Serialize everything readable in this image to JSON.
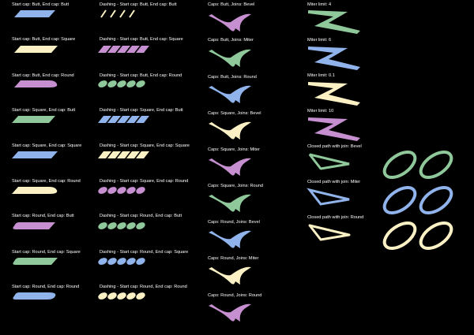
{
  "colors": {
    "background": "#000000",
    "text": "#ffffff",
    "purple": "#c58fd0",
    "yellow": "#fbf1c4",
    "blue": "#8fb3ea",
    "green": "#8fc89a"
  },
  "cap_labels": [
    "Start cap: Butt, End cap: Butt",
    "Start cap: Butt, End cap: Square",
    "Start cap: Butt, End cap: Round",
    "Start cap: Square, End cap: Butt",
    "Start cap: Square, End cap: Square",
    "Start cap: Square, End cap: Round",
    "Start cap: Round, End cap: Butt",
    "Start cap: Round, End cap: Square",
    "Start cap: Round, End cap: Round"
  ],
  "dash_labels": [
    "Dashing - Start cap: Butt, End cap: Butt",
    "Dashing - Start cap: Butt, End cap: Square",
    "Dashing - Start cap: Butt, End cap: Round",
    "Dashing - Start cap: Square, End cap: Butt",
    "Dashing - Start cap: Square, End cap: Square",
    "Dashing - Start cap: Square, End cap: Round",
    "Dashing - Start cap: Round, End cap: Butt",
    "Dashing - Start cap: Round, End cap: Square",
    "Dashing - Start cap: Round, End cap: Round"
  ],
  "join_labels": [
    "Caps: Butt, Joins: Bevel",
    "Caps: Butt, Joins: Miter",
    "Caps: Butt, Joins: Round",
    "Caps: Square, Joins: Bevel",
    "Caps: Square, Joins: Miter",
    "Caps: Square, Joins: Round",
    "Caps: Round, Joins: Bevel",
    "Caps: Round, Joins: Miter",
    "Caps: Round, Joins: Round"
  ],
  "miter_labels": [
    "Miter limit: 4",
    "Miter limit: 6",
    "Miter limit: 0.1",
    "Miter limit: 10"
  ],
  "closed_labels": [
    "Closed path with join: Bevel",
    "Closed path with join: Miter",
    "Closed path with join: Round"
  ]
}
